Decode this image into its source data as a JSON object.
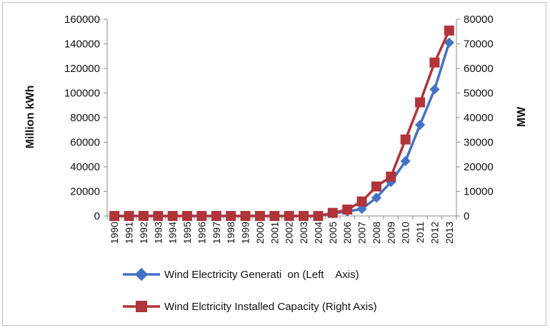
{
  "chart_data": {
    "type": "line",
    "categories": [
      "1990",
      "1991",
      "1992",
      "1993",
      "1994",
      "1995",
      "1996",
      "1997",
      "1998",
      "1999",
      "2000",
      "2001",
      "2002",
      "2003",
      "2004",
      "2005",
      "2006",
      "2007",
      "2008",
      "2009",
      "2010",
      "2011",
      "2012",
      "2013"
    ],
    "series": [
      {
        "name": "Wind Electricity Generati  on (Left    Axis)",
        "axis": "left",
        "color": "#4472c4",
        "marker": "diamond",
        "values": [
          0,
          0,
          0,
          0,
          0,
          0,
          0,
          0,
          0,
          0,
          0,
          0,
          0,
          0,
          0,
          2000,
          3700,
          5700,
          14800,
          27600,
          44600,
          74100,
          103000,
          141000
        ]
      },
      {
        "name": "Wind Elctricity Installed Capacity (Right Axis)",
        "axis": "right",
        "color": "#b0343a",
        "marker": "square",
        "values": [
          0,
          0,
          0,
          0,
          0,
          0,
          0,
          0,
          0,
          0,
          0,
          0,
          0,
          0,
          0,
          1260,
          2600,
          5900,
          12000,
          16000,
          31100,
          46200,
          62400,
          75400
        ]
      }
    ],
    "ylabel_left": "Million kWh",
    "ylabel_right": "MW",
    "ylim_left": [
      0,
      160000
    ],
    "ylim_right": [
      0,
      80000
    ],
    "yticks_left": [
      "0",
      "20000",
      "40000",
      "60000",
      "80000",
      "100000",
      "120000",
      "140000",
      "160000"
    ],
    "yticks_right": [
      "0",
      "10000",
      "20000",
      "30000",
      "40000",
      "50000",
      "60000",
      "70000",
      "80000"
    ],
    "grid": false,
    "legend_position": "bottom"
  }
}
